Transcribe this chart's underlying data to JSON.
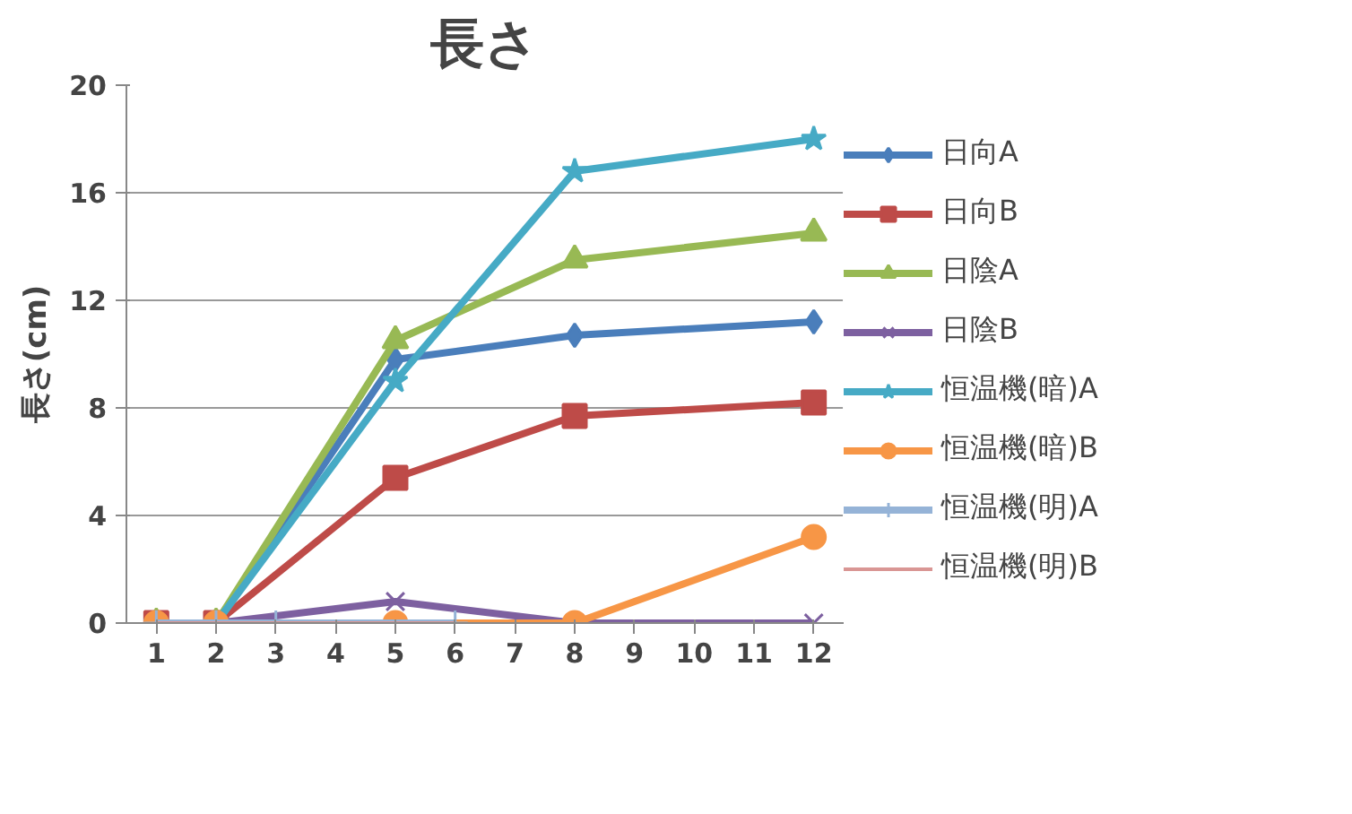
{
  "chart_data": {
    "type": "line",
    "title": "長さ",
    "ylabel": "長さ(cm)",
    "xlim": [
      0.5,
      12.5
    ],
    "xticks": [
      1,
      2,
      3,
      4,
      5,
      6,
      7,
      8,
      9,
      10,
      11,
      12
    ],
    "ylim": [
      0,
      20
    ],
    "yticks": [
      0,
      4,
      8,
      12,
      16,
      20
    ],
    "grid": "y",
    "legend": "right",
    "line_style": "solid",
    "series": [
      {
        "name": "日向A",
        "color": "#4a7ebb",
        "marker": "diamond",
        "x": [
          1,
          2,
          5,
          8,
          12
        ],
        "values": [
          0,
          0,
          9.8,
          10.7,
          11.2
        ]
      },
      {
        "name": "日向B",
        "color": "#be4b48",
        "marker": "square",
        "x": [
          1,
          2,
          5,
          8,
          12
        ],
        "values": [
          0,
          0,
          5.4,
          7.7,
          8.2
        ]
      },
      {
        "name": "日陰A",
        "color": "#98b954",
        "marker": "triangle",
        "x": [
          1,
          2,
          5,
          8,
          12
        ],
        "values": [
          0,
          0,
          10.5,
          13.5,
          14.5
        ]
      },
      {
        "name": "日陰B",
        "color": "#7d60a0",
        "marker": "x",
        "x": [
          1,
          2,
          5,
          8,
          12
        ],
        "values": [
          0,
          0,
          0.8,
          0,
          0
        ]
      },
      {
        "name": "恒温機(暗)A",
        "color": "#46aac5",
        "marker": "star",
        "x": [
          1,
          2,
          5,
          8,
          12
        ],
        "values": [
          0,
          0,
          9.0,
          16.8,
          18.0
        ]
      },
      {
        "name": "恒温機(暗)B",
        "color": "#f79646",
        "marker": "circle",
        "x": [
          1,
          2,
          5,
          8,
          12
        ],
        "values": [
          0,
          0,
          0,
          0,
          3.2
        ]
      },
      {
        "name": "恒温機(明)A",
        "color": "#95b3d7",
        "marker": "cross",
        "x": [
          1,
          2,
          3,
          6
        ],
        "values": [
          0,
          0,
          0,
          0
        ]
      },
      {
        "name": "恒温機(明)B",
        "color": "#d99694",
        "marker": "none",
        "x": [
          1,
          2,
          3,
          6
        ],
        "values": [
          0,
          0,
          0,
          0
        ]
      }
    ]
  }
}
